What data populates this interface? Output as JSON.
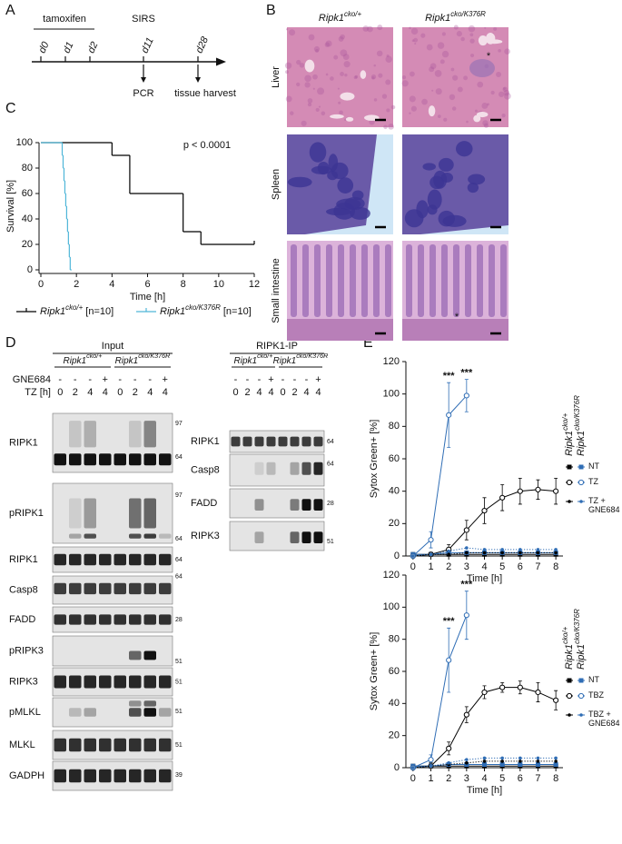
{
  "panel_labels": [
    "A",
    "B",
    "C",
    "D",
    "E"
  ],
  "timeline": {
    "treatment": "tamoxifen",
    "days": [
      "d0",
      "d1",
      "d2",
      "d11",
      "d28"
    ],
    "event": "SIRS",
    "readouts": [
      "PCR",
      "tissue harvest"
    ]
  },
  "histology": {
    "columns": [
      "Ripk1cko/+",
      "Ripk1cko/K376R"
    ],
    "rows": [
      "Liver",
      "Spleen",
      "Small intestine"
    ],
    "annotations": [
      "*",
      "*"
    ]
  },
  "chart_data": [
    {
      "type": "step",
      "xlabel": "Time [h]",
      "ylabel": "Survival [%]",
      "annotation": "p < 0.0001",
      "xlim": [
        0,
        12
      ],
      "ylim": [
        0,
        100
      ],
      "xticks": [
        0,
        2,
        4,
        6,
        8,
        10,
        12
      ],
      "yticks": [
        0,
        20,
        40,
        60,
        80,
        100
      ],
      "series": [
        {
          "name": "Ripk1cko/+ [n=10]",
          "color": "#000000",
          "censored_end": true,
          "x": [
            0,
            4,
            5,
            8,
            9,
            12
          ],
          "values": [
            100,
            90,
            60,
            30,
            20,
            20
          ]
        },
        {
          "name": "Ripk1cko/K376R [n=10]",
          "color": "#4fb6d8",
          "censored_end": false,
          "x": [
            0,
            1.2,
            1.25,
            1.3,
            1.35,
            1.4,
            1.45,
            1.5,
            1.55,
            1.6,
            1.65
          ],
          "values": [
            100,
            90,
            80,
            70,
            60,
            50,
            40,
            30,
            20,
            10,
            0
          ]
        }
      ]
    },
    {
      "type": "line",
      "xlabel": "Time [h]",
      "ylabel": "Sytox Green+ [%]",
      "x": [
        0,
        1,
        2,
        3,
        4,
        5,
        6,
        7,
        8
      ],
      "xlim": [
        -0.4,
        8.4
      ],
      "ylim": [
        0,
        120
      ],
      "xticks": [
        0,
        1,
        2,
        3,
        4,
        5,
        6,
        7,
        8
      ],
      "yticks": [
        0,
        20,
        40,
        60,
        80,
        100,
        120
      ],
      "annotations": [
        {
          "text": "***",
          "x": 2
        },
        {
          "text": "***",
          "x": 3
        }
      ],
      "legend_columns": [
        "Ripk1cko/+",
        "Ripk1cko/K376R"
      ],
      "series": [
        {
          "name": "NT",
          "marker": "square",
          "dash": "solid",
          "lines": [
            {
              "color": "#000000",
              "values": [
                1,
                1,
                1,
                1,
                1,
                1,
                1,
                1,
                1
              ]
            },
            {
              "color": "#2f6db5",
              "values": [
                1,
                1,
                2,
                2,
                2,
                2,
                2,
                2,
                2
              ]
            }
          ]
        },
        {
          "name": "TZ",
          "marker": "circle-open",
          "dash": "solid",
          "lines": [
            {
              "color": "#000000",
              "values": [
                0,
                1,
                4,
                16,
                28,
                36,
                40,
                41,
                40
              ],
              "errors": [
                1,
                1,
                3,
                6,
                8,
                8,
                8,
                6,
                8
              ]
            },
            {
              "color": "#2f6db5",
              "values": [
                0,
                10,
                87,
                99,
                null,
                null,
                null,
                null,
                null
              ],
              "errors": [
                1,
                5,
                20,
                10,
                null,
                null,
                null,
                null,
                null
              ]
            }
          ]
        },
        {
          "name": "TZ + GNE684",
          "marker": "dot",
          "dash": "dotted",
          "lines": [
            {
              "color": "#000000",
              "values": [
                0,
                1,
                1,
                2,
                2,
                2,
                2,
                2,
                2
              ]
            },
            {
              "color": "#2f6db5",
              "values": [
                0,
                1,
                3,
                5,
                4,
                4,
                4,
                4,
                4
              ]
            }
          ]
        }
      ]
    },
    {
      "type": "line",
      "xlabel": "Time [h]",
      "ylabel": "Sytox Green+ [%]",
      "x": [
        0,
        1,
        2,
        3,
        4,
        5,
        6,
        7,
        8
      ],
      "xlim": [
        -0.4,
        8.4
      ],
      "ylim": [
        0,
        120
      ],
      "xticks": [
        0,
        1,
        2,
        3,
        4,
        5,
        6,
        7,
        8
      ],
      "yticks": [
        0,
        20,
        40,
        60,
        80,
        100,
        120
      ],
      "annotations": [
        {
          "text": "***",
          "x": 2
        },
        {
          "text": "***",
          "x": 3
        }
      ],
      "legend_columns": [
        "Ripk1cko/+",
        "Ripk1cko/K376R"
      ],
      "series": [
        {
          "name": "NT",
          "marker": "square",
          "dash": "solid",
          "lines": [
            {
              "color": "#000000",
              "values": [
                1,
                1,
                1,
                1,
                1,
                1,
                1,
                1,
                1
              ]
            },
            {
              "color": "#2f6db5",
              "values": [
                1,
                1,
                2,
                2,
                2,
                2,
                2,
                2,
                2
              ]
            }
          ]
        },
        {
          "name": "TBZ",
          "marker": "circle-open",
          "dash": "solid",
          "lines": [
            {
              "color": "#000000",
              "values": [
                0,
                1,
                12,
                33,
                47,
                50,
                50,
                47,
                42
              ],
              "errors": [
                1,
                2,
                4,
                5,
                4,
                3,
                4,
                6,
                6
              ]
            },
            {
              "color": "#2f6db5",
              "values": [
                0,
                5,
                67,
                95,
                null,
                null,
                null,
                null,
                null
              ],
              "errors": [
                1,
                3,
                20,
                15,
                null,
                null,
                null,
                null,
                null
              ]
            }
          ]
        },
        {
          "name": "TBZ + GNE684",
          "marker": "dot",
          "dash": "dotted",
          "lines": [
            {
              "color": "#000000",
              "values": [
                0,
                1,
                2,
                3,
                4,
                4,
                4,
                4,
                4
              ]
            },
            {
              "color": "#2f6db5",
              "values": [
                0,
                1,
                3,
                5,
                6,
                6,
                6,
                6,
                6
              ]
            }
          ]
        }
      ]
    }
  ],
  "blots": {
    "input": {
      "title": "Input",
      "genotypes": [
        "Ripk1cko/+",
        "Ripk1cko/K376R"
      ],
      "row_labels": [
        "GNE684",
        "TZ [h]"
      ],
      "gne684": [
        "-",
        "-",
        "-",
        "+",
        "-",
        "-",
        "-",
        "+"
      ],
      "tz_h": [
        0,
        2,
        4,
        4,
        0,
        2,
        4,
        4
      ],
      "panels": [
        {
          "label": "RIPK1",
          "markers": [
            97,
            64
          ]
        },
        {
          "label": "pRIPK1",
          "markers": [
            97,
            64
          ]
        },
        {
          "label": "RIPK1",
          "markers": [
            64
          ]
        },
        {
          "label": "Casp8",
          "markers": [
            64
          ]
        },
        {
          "label": "FADD",
          "markers": [
            28
          ]
        },
        {
          "label": "pRIPK3",
          "markers": [
            51
          ]
        },
        {
          "label": "RIPK3",
          "markers": [
            51
          ]
        },
        {
          "label": "pMLKL",
          "markers": [
            51
          ]
        },
        {
          "label": "MLKL",
          "markers": [
            51
          ]
        },
        {
          "label": "GADPH",
          "markers": [
            39
          ]
        }
      ]
    },
    "ip": {
      "title": "RIPK1-IP",
      "genotypes": [
        "Ripk1cko/+",
        "Ripk1cko/K376R"
      ],
      "gne684": [
        "-",
        "-",
        "-",
        "+",
        "-",
        "-",
        "-",
        "+"
      ],
      "tz_h": [
        0,
        2,
        4,
        4,
        0,
        2,
        4,
        4
      ],
      "panels": [
        {
          "label": "RIPK1",
          "markers": [
            64
          ]
        },
        {
          "label": "Casp8",
          "markers": [
            64
          ]
        },
        {
          "label": "FADD",
          "markers": [
            28
          ]
        },
        {
          "label": "RIPK3",
          "markers": [
            51
          ]
        }
      ]
    }
  }
}
